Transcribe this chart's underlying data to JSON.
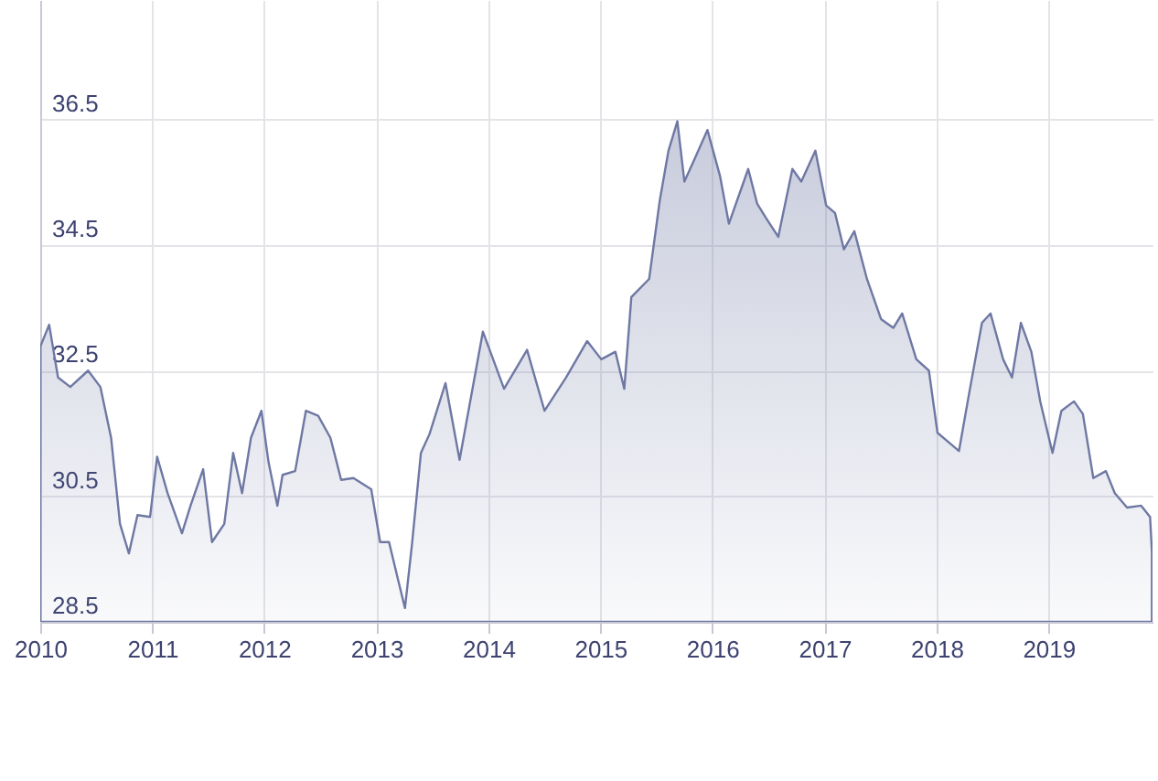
{
  "chart_data": {
    "type": "area",
    "xlim": [
      "2010-01-01",
      "2019-12-06"
    ],
    "ylim": [
      28.5,
      38.4
    ],
    "xticks": [
      "2010",
      "2011",
      "2012",
      "2013",
      "2014",
      "2015",
      "2016",
      "2017",
      "2018",
      "2019"
    ],
    "yticks": [
      28.5,
      30.5,
      32.5,
      34.5,
      36.5
    ],
    "grid": true,
    "x": [
      "2010-01-01",
      "2010-01-30",
      "2010-02-28",
      "2010-04-09",
      "2010-06-06",
      "2010-07-16",
      "2010-08-20",
      "2010-09-18",
      "2010-10-17",
      "2010-11-14",
      "2010-12-25",
      "2011-01-17",
      "2011-02-20",
      "2011-04-08",
      "2011-05-06",
      "2011-06-16",
      "2011-07-15",
      "2011-08-24",
      "2011-09-22",
      "2011-10-21",
      "2011-11-19",
      "2011-12-23",
      "2012-01-15",
      "2012-02-13",
      "2012-03-01",
      "2012-04-11",
      "2012-05-16",
      "2012-06-25",
      "2012-08-04",
      "2012-09-08",
      "2012-10-18",
      "2012-12-15",
      "2013-01-13",
      "2013-02-11",
      "2013-03-12",
      "2013-04-04",
      "2013-04-27",
      "2013-05-26",
      "2013-06-23",
      "2013-08-14",
      "2013-09-29",
      "2013-12-14",
      "2014-02-21",
      "2014-05-07",
      "2014-07-03",
      "2014-09-11",
      "2014-11-19",
      "2015-01-04",
      "2015-02-19",
      "2015-03-20",
      "2015-04-12",
      "2015-06-09",
      "2015-07-14",
      "2015-08-11",
      "2015-09-09",
      "2015-10-02",
      "2015-11-06",
      "2015-12-16",
      "2016-01-26",
      "2016-02-24",
      "2016-04-27",
      "2016-05-26",
      "2016-06-24",
      "2016-08-03",
      "2016-09-18",
      "2016-10-17",
      "2016-12-02",
      "2017-01-06",
      "2017-02-04",
      "2017-03-05",
      "2017-04-08",
      "2017-05-19",
      "2017-07-04",
      "2017-08-13",
      "2017-09-11",
      "2017-10-27",
      "2017-12-07",
      "2018-01-04",
      "2018-02-14",
      "2018-03-15",
      "2018-04-18",
      "2018-05-29",
      "2018-06-26",
      "2018-08-06",
      "2018-09-04",
      "2018-10-03",
      "2018-11-06",
      "2018-12-05",
      "2019-01-14",
      "2019-02-12",
      "2019-03-25",
      "2019-04-23",
      "2019-05-27",
      "2019-07-07",
      "2019-08-05",
      "2019-09-14",
      "2019-10-30",
      "2019-11-28",
      "2019-12-04"
    ],
    "series": [
      {
        "color": "#6e78a3",
        "values": [
          32.88,
          33.23,
          32.39,
          32.24,
          32.5,
          32.24,
          31.43,
          30.06,
          29.59,
          30.2,
          30.17,
          31.13,
          30.55,
          29.91,
          30.35,
          30.93,
          29.77,
          30.06,
          31.19,
          30.55,
          31.43,
          31.86,
          31.05,
          30.35,
          30.84,
          30.9,
          31.86,
          31.78,
          31.43,
          30.76,
          30.79,
          30.61,
          29.77,
          29.77,
          29.18,
          28.72,
          29.74,
          31.19,
          31.49,
          32.3,
          31.08,
          33.12,
          32.21,
          32.83,
          31.86,
          32.39,
          32.97,
          32.68,
          32.8,
          32.21,
          33.67,
          33.96,
          35.22,
          36.0,
          36.47,
          35.51,
          35.89,
          36.33,
          35.6,
          34.84,
          35.71,
          35.16,
          34.93,
          34.63,
          35.71,
          35.51,
          36.0,
          35.13,
          35.01,
          34.43,
          34.72,
          33.96,
          33.32,
          33.18,
          33.41,
          32.68,
          32.5,
          31.51,
          31.34,
          31.22,
          32.16,
          33.26,
          33.41,
          32.68,
          32.39,
          33.26,
          32.8,
          32.01,
          31.19,
          31.86,
          32.01,
          31.81,
          30.79,
          30.9,
          30.55,
          30.32,
          30.35,
          30.17,
          29.62
        ]
      }
    ]
  }
}
